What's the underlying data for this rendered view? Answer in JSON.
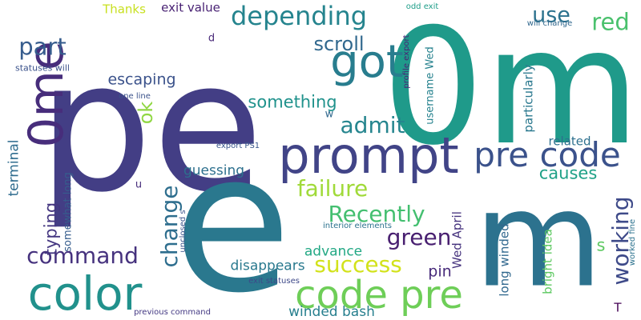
{
  "words": [
    {
      "text": "pe",
      "color": "#433e85"
    },
    {
      "text": "0m",
      "color": "#1f9a8a"
    },
    {
      "text": "e",
      "color": "#2a788e"
    },
    {
      "text": "m",
      "color": "#2c728e"
    },
    {
      "text": "prompt",
      "color": "#414487"
    },
    {
      "text": "color",
      "color": "#21918c"
    },
    {
      "text": "code pre",
      "color": "#6ece58"
    },
    {
      "text": "0me",
      "color": "#472d7b"
    },
    {
      "text": "got",
      "color": "#287d8e"
    },
    {
      "text": "pre code",
      "color": "#3b528b"
    },
    {
      "text": "depending",
      "color": "#25848e"
    },
    {
      "text": "command",
      "color": "#46327e"
    },
    {
      "text": "change",
      "color": "#2e6e8e"
    },
    {
      "text": "failure",
      "color": "#a0da39"
    },
    {
      "text": "Recently",
      "color": "#44bf70"
    },
    {
      "text": "success",
      "color": "#d2e21b"
    },
    {
      "text": "green",
      "color": "#481f70"
    },
    {
      "text": "working",
      "color": "#3e4a89"
    },
    {
      "text": "admit",
      "color": "#25858e"
    },
    {
      "text": "something",
      "color": "#20928c"
    },
    {
      "text": "use",
      "color": "#2c728e"
    },
    {
      "text": "red",
      "color": "#4ac16d"
    },
    {
      "text": "part",
      "color": "#365c8d"
    },
    {
      "text": "scroll",
      "color": "#31688e"
    },
    {
      "text": "causes",
      "color": "#1fa187"
    },
    {
      "text": "typing",
      "color": "#453781"
    },
    {
      "text": "terminal",
      "color": "#2f6c8e"
    },
    {
      "text": "ok",
      "color": "#90d743"
    },
    {
      "text": "escaping",
      "color": "#3b528b"
    },
    {
      "text": "guessing",
      "color": "#2d708e"
    },
    {
      "text": "disappears",
      "color": "#29798e"
    },
    {
      "text": "advance",
      "color": "#22a884"
    },
    {
      "text": "winded bash",
      "color": "#277f8e"
    },
    {
      "text": "s",
      "color": "#5ec962"
    },
    {
      "text": "pin",
      "color": "#472a7a"
    },
    {
      "text": "T",
      "color": "#440154"
    },
    {
      "text": "related",
      "color": "#2d708e"
    },
    {
      "text": "long winded",
      "color": "#31688e"
    },
    {
      "text": "bright idea",
      "color": "#5ec962"
    },
    {
      "text": "particularly",
      "color": "#2a788e"
    },
    {
      "text": "Wed April",
      "color": "#46337e"
    },
    {
      "text": "username Wed",
      "color": "#26828e"
    },
    {
      "text": "somewhat long",
      "color": "#365d8d"
    },
    {
      "text": "exit value",
      "color": "#482173"
    },
    {
      "text": "Thanks",
      "color": "#c8e020"
    },
    {
      "text": "statuses will",
      "color": "#3b528b"
    },
    {
      "text": "d",
      "color": "#482878"
    },
    {
      "text": "w",
      "color": "#31688e"
    },
    {
      "text": "u",
      "color": "#472d7b"
    },
    {
      "text": "one line",
      "color": "#3b528b"
    },
    {
      "text": "export PS1",
      "color": "#39568c"
    },
    {
      "text": "interior elements",
      "color": "#2c728e"
    },
    {
      "text": "exit statuses",
      "color": "#3e4989"
    },
    {
      "text": "unclosed s",
      "color": "#3b528b"
    },
    {
      "text": "previous command",
      "color": "#443983"
    },
    {
      "text": "profile export",
      "color": "#482475"
    },
    {
      "text": "odd exit",
      "color": "#1f9e89"
    },
    {
      "text": "will change",
      "color": "#31688e"
    },
    {
      "text": "worked fine",
      "color": "#2c728e"
    }
  ]
}
